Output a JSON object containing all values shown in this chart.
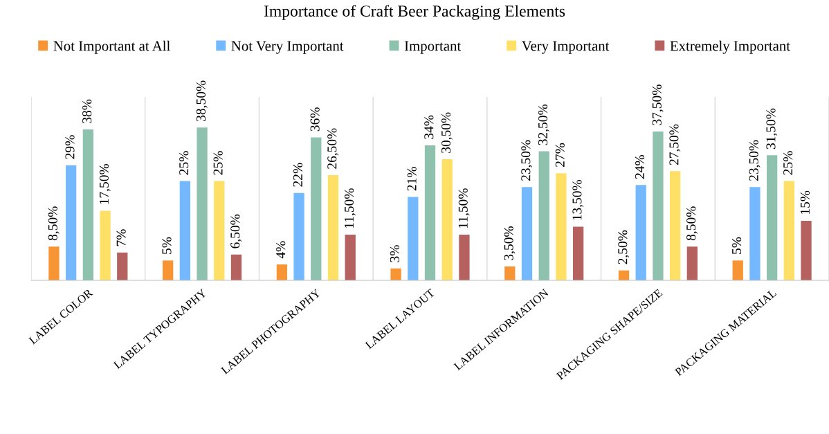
{
  "chart_data": {
    "type": "bar",
    "title": "Importance of Craft Beer Packaging Elements",
    "categories": [
      "LABEL COLOR",
      "LABEL TYPOGRAPHY",
      "LABEL PHOTOGRAPHY",
      "LABEL LAYOUT",
      "LABEL INFORMATION",
      "PACKAGING SHAPE/SIZE",
      "PACKAGING MATERIAL"
    ],
    "series": [
      {
        "name": "Not Important at All",
        "color": "#f79433",
        "values": [
          8.5,
          5,
          4,
          3,
          3.5,
          2.5,
          5
        ],
        "value_labels": [
          "8,50%",
          "5%",
          "4%",
          "3%",
          "3,50%",
          "2,50%",
          "5%"
        ]
      },
      {
        "name": "Not Very Important",
        "color": "#74b9ff",
        "values": [
          29,
          25,
          22,
          21,
          23.5,
          24,
          23.5
        ],
        "value_labels": [
          "29%",
          "25%",
          "22%",
          "21%",
          "23,50%",
          "24%",
          "23,50%"
        ]
      },
      {
        "name": "Important",
        "color": "#8fc2ae",
        "values": [
          38,
          38.5,
          36,
          34,
          32.5,
          37.5,
          31.5
        ],
        "value_labels": [
          "38%",
          "38,50%",
          "36%",
          "34%",
          "32,50%",
          "37,50%",
          "31,50%"
        ]
      },
      {
        "name": "Very Important",
        "color": "#ffe066",
        "values": [
          17.5,
          25,
          26.5,
          30.5,
          27,
          27.5,
          25
        ],
        "value_labels": [
          "17,50%",
          "25%",
          "26,50%",
          "30,50%",
          "27%",
          "27,50%",
          "25%"
        ]
      },
      {
        "name": "Extremely Important",
        "color": "#b5615f",
        "values": [
          7,
          6.5,
          11.5,
          11.5,
          13.5,
          8.5,
          15
        ],
        "value_labels": [
          "7%",
          "6,50%",
          "11,50%",
          "11,50%",
          "13,50%",
          "8,50%",
          "15%"
        ]
      }
    ],
    "grid": "x",
    "legend": "top"
  }
}
